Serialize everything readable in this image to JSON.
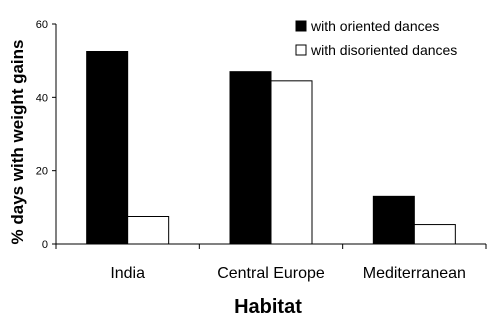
{
  "chart_data": {
    "type": "bar",
    "categories": [
      "India",
      "Central Europe",
      "Mediterranean"
    ],
    "series": [
      {
        "name": "with oriented dances",
        "values": [
          52.5,
          47,
          13
        ],
        "color": "#000000"
      },
      {
        "name": "with disoriented dances",
        "values": [
          7.5,
          44.5,
          5.3
        ],
        "color": "#ffffff"
      }
    ],
    "xlabel": "Habitat",
    "ylabel": "% days with weight gains",
    "ylim": [
      0,
      60
    ],
    "yticks": [
      "0",
      "20",
      "40",
      "60"
    ],
    "grid": false,
    "legend_position": "top-right"
  }
}
